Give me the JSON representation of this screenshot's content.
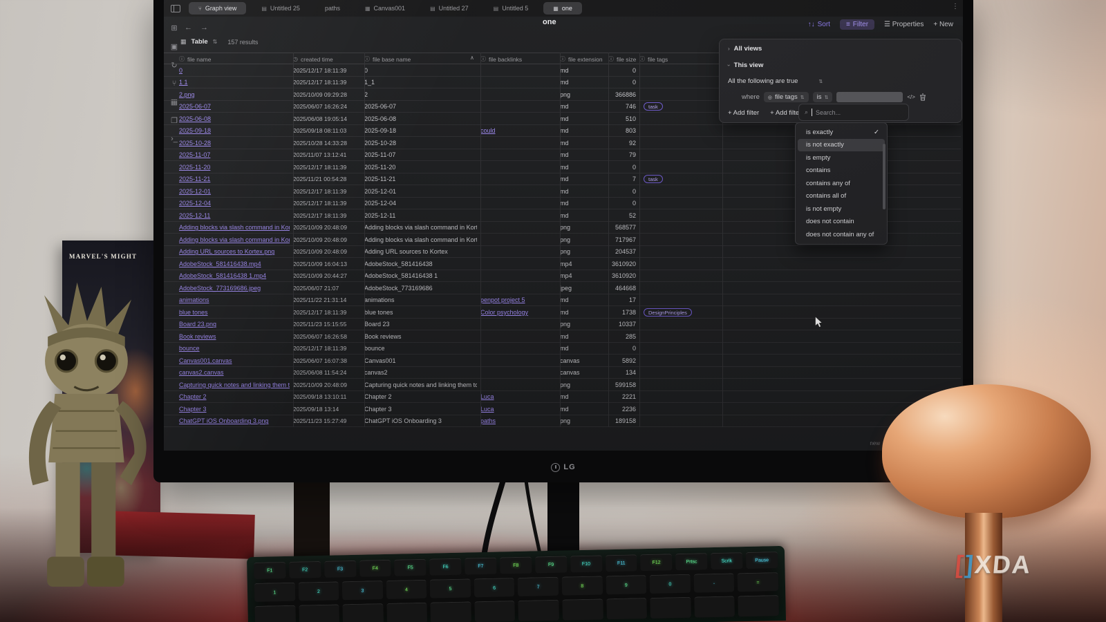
{
  "scene": {
    "brand": "LG",
    "watermark": {
      "bracket_left": "[",
      "bracket_right": "]",
      "text": "XDA"
    },
    "book_title": "MARVEL'S MIGHT",
    "keyboard": {
      "f_keys": [
        "F1",
        "F2",
        "F3",
        "F4",
        "F5",
        "F6",
        "F7",
        "F8",
        "F9",
        "F10",
        "F11",
        "F12"
      ],
      "nav_keys": [
        "Prtsc",
        "Scrlk",
        "Pause"
      ],
      "number_keys": [
        "1",
        "2",
        "3",
        "4",
        "5",
        "6",
        "7",
        "8",
        "9",
        "0",
        "-",
        "="
      ]
    }
  },
  "app": {
    "tabs": [
      {
        "label": "Graph view",
        "icon": "graph",
        "active": true
      },
      {
        "label": "Untitled 25",
        "icon": "file",
        "active": false
      },
      {
        "label": "paths",
        "icon": null,
        "active": false
      },
      {
        "label": "Canvas001",
        "icon": "canvas",
        "active": false
      },
      {
        "label": "Untitled 27",
        "icon": "file",
        "active": false
      },
      {
        "label": "Untitled 5",
        "icon": "file",
        "active": false
      },
      {
        "label": "one",
        "icon": "table",
        "active": true
      }
    ],
    "kebab": "⋮",
    "note_title": "one",
    "status": "new",
    "ribbon": [
      {
        "name": "quick-switcher"
      },
      {
        "name": "daily-note"
      },
      {
        "name": "sync"
      },
      {
        "name": "graph-view"
      },
      {
        "name": "canvas"
      },
      {
        "name": "templates"
      },
      {
        "name": "terminal"
      }
    ],
    "header_actions": {
      "sort": "Sort",
      "filter": "Filter",
      "properties": "Properties",
      "new": "New"
    },
    "base_toolbar": {
      "view": "Table",
      "results": "157 results"
    },
    "table": {
      "columns": [
        {
          "label": "file name",
          "icon": "info"
        },
        {
          "label": "created time",
          "icon": "clock"
        },
        {
          "label": "file base name",
          "icon": "info",
          "sorted": "asc"
        },
        {
          "label": "file backlinks",
          "icon": "info"
        },
        {
          "label": "file extension",
          "icon": "info"
        },
        {
          "label": "file size",
          "icon": "info"
        },
        {
          "label": "file tags",
          "icon": "info"
        }
      ],
      "rows": [
        [
          "0",
          "2025/12/17 18:11:39",
          "0",
          "",
          "md",
          "0",
          ""
        ],
        [
          "1 1",
          "2025/12/17 18:11:39",
          "1_1",
          "",
          "md",
          "0",
          ""
        ],
        [
          "2.png",
          "2025/10/09 09:29:28",
          "2",
          "",
          "png",
          "366886",
          ""
        ],
        [
          "2025-06-07",
          "2025/06/07 16:26:24",
          "2025-06-07",
          "",
          "md",
          "746",
          "task"
        ],
        [
          "2025-06-08",
          "2025/06/08 19:05:14",
          "2025-06-08",
          "",
          "md",
          "510",
          ""
        ],
        [
          "2025-09-18",
          "2025/09/18 08:11:03",
          "2025-09-18",
          "could",
          "md",
          "803",
          ""
        ],
        [
          "2025-10-28",
          "2025/10/28 14:33:28",
          "2025-10-28",
          "",
          "md",
          "92",
          ""
        ],
        [
          "2025-11-07",
          "2025/11/07 13:12:41",
          "2025-11-07",
          "",
          "md",
          "79",
          ""
        ],
        [
          "2025-11-20",
          "2025/12/17 18:11:39",
          "2025-11-20",
          "",
          "md",
          "0",
          ""
        ],
        [
          "2025-11-21",
          "2025/11/21 00:54:28",
          "2025-11-21",
          "",
          "md",
          "7",
          "task"
        ],
        [
          "2025-12-01",
          "2025/12/17 18:11:39",
          "2025-12-01",
          "",
          "md",
          "0",
          ""
        ],
        [
          "2025-12-04",
          "2025/12/17 18:11:39",
          "2025-12-04",
          "",
          "md",
          "0",
          ""
        ],
        [
          "2025-12-11",
          "2025/12/17 18:11:39",
          "2025-12-11",
          "",
          "md",
          "52",
          ""
        ],
        [
          "Adding blocks via slash command in Kortex.png",
          "2025/10/09 20:48:09",
          "Adding blocks via slash command in Kortex",
          "",
          "png",
          "568577",
          ""
        ],
        [
          "Adding blocks via slash command in Kortex, and c",
          "2025/10/09 20:48:09",
          "Adding blocks via slash command in Kortex, and c",
          "",
          "png",
          "717967",
          ""
        ],
        [
          "Adding URL sources to Kortex.png",
          "2025/10/09 20:48:09",
          "Adding URL sources to Kortex",
          "",
          "png",
          "204537",
          ""
        ],
        [
          "AdobeStock_581416438.mp4",
          "2025/10/09 16:04:13",
          "AdobeStock_581416438",
          "",
          "mp4",
          "3610920",
          ""
        ],
        [
          "AdobeStock_581416438 1.mp4",
          "2025/10/09 20:44:27",
          "AdobeStock_581416438 1",
          "",
          "mp4",
          "3610920",
          ""
        ],
        [
          "AdobeStock_773169686.jpeg",
          "2025/06/07 21:07",
          "AdobeStock_773169686",
          "",
          "jpeg",
          "464668",
          ""
        ],
        [
          "animations",
          "2025/11/22 21:31:14",
          "animations",
          "penpot project 5",
          "md",
          "17",
          ""
        ],
        [
          "blue tones",
          "2025/12/17 18:11:39",
          "blue tones",
          "Color psychology",
          "md",
          "1738",
          "DesignPrinciples"
        ],
        [
          "Board 23.png",
          "2025/11/23 15:15:55",
          "Board 23",
          "",
          "png",
          "10337",
          ""
        ],
        [
          "Book reviews",
          "2025/06/07 16:26:58",
          "Book reviews",
          "",
          "md",
          "285",
          ""
        ],
        [
          "bounce",
          "2025/12/17 18:11:39",
          "bounce",
          "",
          "md",
          "0",
          ""
        ],
        [
          "Canvas001.canvas",
          "2025/06/07 16:07:38",
          "Canvas001",
          "",
          "canvas",
          "5892",
          ""
        ],
        [
          "canvas2.canvas",
          "2025/06/08 11:54:24",
          "canvas2",
          "",
          "canvas",
          "134",
          ""
        ],
        [
          "Capturing quick notes and linking them to docume",
          "2025/10/09 20:48:09",
          "Capturing quick notes and linking them to docume",
          "",
          "png",
          "599158",
          ""
        ],
        [
          "Chapter 2",
          "2025/09/18 13:10:11",
          "Chapter 2",
          "Luca",
          "md",
          "2221",
          ""
        ],
        [
          "Chapter 3",
          "2025/09/18 13:14",
          "Chapter 3",
          "Luca",
          "md",
          "2236",
          ""
        ],
        [
          "ChatGPT iOS Onboarding 3.png",
          "2025/11/23 15:27:49",
          "ChatGPT iOS Onboarding 3",
          "paths",
          "png",
          "189158",
          ""
        ]
      ]
    },
    "filter_panel": {
      "all_views": "All views",
      "this_view": "This view",
      "condition": "All the following are true",
      "where_label": "where",
      "field_pill": "file tags",
      "operator_pill": "is",
      "add_filter": "+ Add filter",
      "add_filter_group": "+ Add filter g",
      "code_icon": "</>"
    },
    "search": {
      "placeholder": "Search..."
    },
    "operator_menu": {
      "items": [
        {
          "label": "is exactly",
          "checked": true
        },
        {
          "label": "is not exactly",
          "highlighted": true
        },
        {
          "label": "is empty"
        },
        {
          "label": "contains"
        },
        {
          "label": "contains any of"
        },
        {
          "label": "contains all of"
        },
        {
          "label": "is not empty"
        },
        {
          "label": "does not contain"
        },
        {
          "label": "does not contain any of"
        }
      ]
    }
  },
  "colors": {
    "accent": "#a18cf5",
    "screen_bg": "#1d1e20",
    "tag_border": "#6f5bd0",
    "key_glow_green": "#63f59b",
    "key_glow_cyan": "#52d9f2"
  }
}
